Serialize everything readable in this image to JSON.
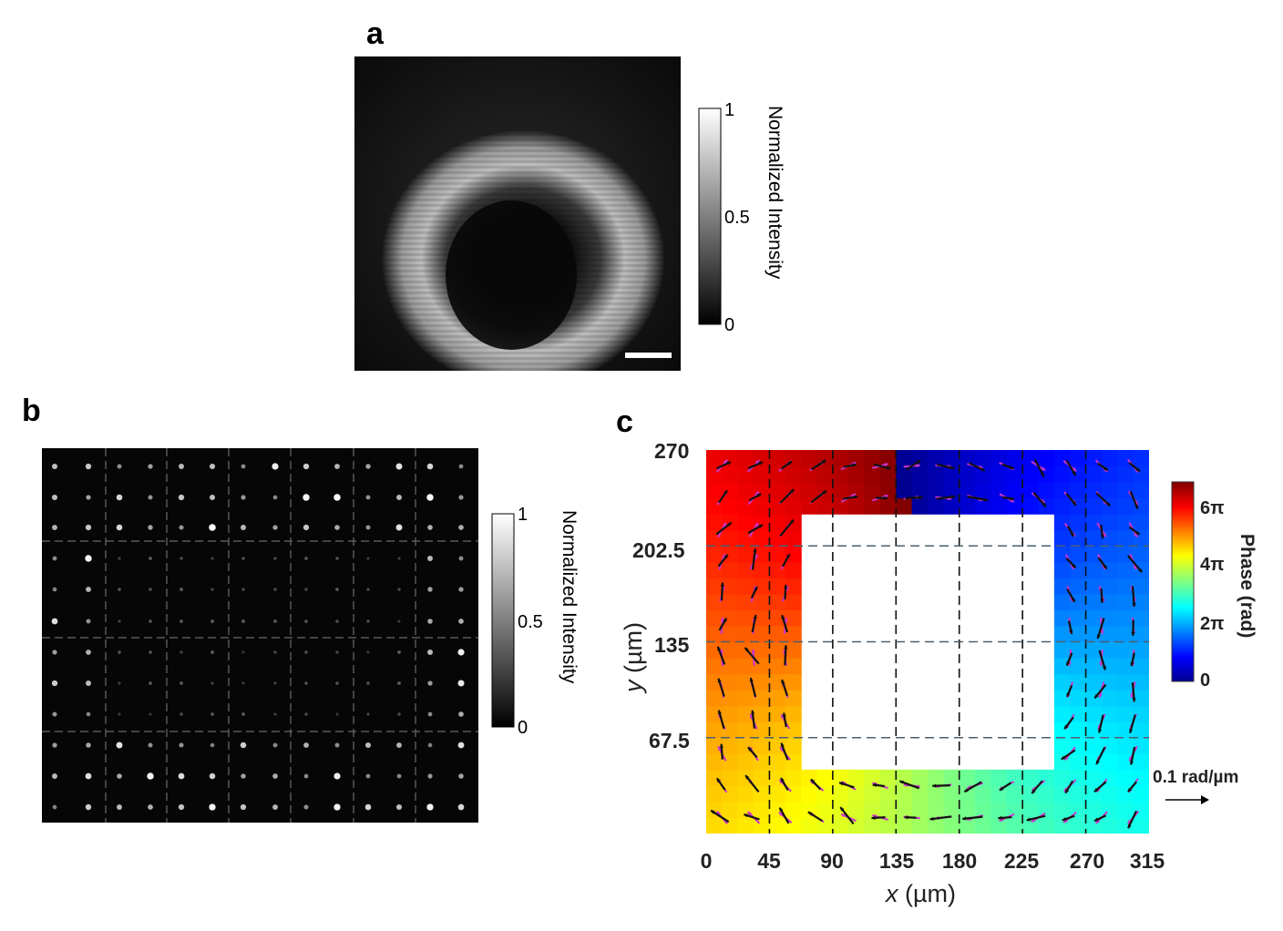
{
  "panels": {
    "a": {
      "label": "a",
      "colorbar": {
        "title": "Normalized Intensity",
        "ticks": [
          "1",
          "0.5",
          "0"
        ]
      }
    },
    "b": {
      "label": "b",
      "colorbar": {
        "title": "Normalized Intensity",
        "ticks": [
          "1",
          "0.5",
          "0"
        ]
      }
    },
    "c": {
      "label": "c",
      "colorbar": {
        "title": "Phase (rad)",
        "ticks": [
          "6π",
          "4π",
          "2π",
          "0"
        ]
      },
      "arrow_scale_label": "0.1 rad/µm"
    }
  },
  "chart_data": {
    "type": "heatmap",
    "title": "",
    "xlabel_italic": "x",
    "xlabel_unit": " (µm)",
    "ylabel_italic": "y",
    "ylabel_unit": " (µm)",
    "xlim": [
      0,
      315
    ],
    "ylim": [
      0,
      270
    ],
    "xticks": [
      "0",
      "45",
      "90",
      "135",
      "180",
      "225",
      "270",
      "315"
    ],
    "yticks": [
      "270",
      "202.5",
      "135",
      "67.5"
    ],
    "x_gridlines": [
      45,
      90,
      135,
      180,
      225,
      270
    ],
    "y_gridlines": [
      67.5,
      135,
      202.5
    ],
    "colorbar_range_rad": [
      0,
      6.2832,
      12.566,
      18.85
    ],
    "hole_region_um": {
      "x": [
        67.5,
        247.5
      ],
      "y": [
        45,
        225
      ]
    },
    "phase_ramp_note": "phase increases clockwise around the square frame from 0 (top-center) to 6π"
  },
  "colors": {
    "guide_dashed": "#4a6070",
    "arrow_measured": "#111111",
    "arrow_target": "#cc33cc"
  }
}
